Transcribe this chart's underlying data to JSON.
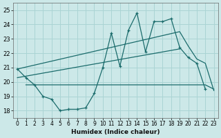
{
  "bg_color": "#cce8e8",
  "grid_color": "#aad4d4",
  "line_color": "#1a6b6b",
  "xlabel": "Humidex (Indice chaleur)",
  "ylim": [
    17.5,
    25.5
  ],
  "xlim": [
    -0.5,
    23.5
  ],
  "xticks": [
    0,
    1,
    2,
    3,
    4,
    5,
    6,
    7,
    8,
    9,
    10,
    11,
    12,
    13,
    14,
    15,
    16,
    17,
    18,
    19,
    20,
    21,
    22,
    23
  ],
  "yticks": [
    18,
    19,
    20,
    21,
    22,
    23,
    24,
    25
  ],
  "main": {
    "x": [
      0,
      1,
      2,
      3,
      4,
      5,
      6,
      7,
      8,
      9,
      10,
      11,
      12,
      13,
      14,
      15,
      16,
      17,
      18,
      19,
      20,
      21,
      22
    ],
    "y": [
      20.9,
      20.3,
      19.8,
      19.0,
      18.8,
      18.0,
      18.1,
      18.1,
      18.2,
      19.2,
      21.0,
      23.4,
      21.1,
      23.6,
      24.8,
      22.1,
      24.2,
      24.2,
      24.4,
      22.4,
      21.7,
      21.3,
      19.5
    ]
  },
  "upper": {
    "x": [
      0,
      19,
      20,
      21,
      22,
      23
    ],
    "y": [
      20.9,
      23.5,
      22.5,
      21.6,
      21.3,
      19.4
    ]
  },
  "middle": {
    "x": [
      0,
      19
    ],
    "y": [
      20.3,
      22.3
    ]
  },
  "lower": {
    "x": [
      0,
      22,
      23
    ],
    "y": [
      19.8,
      19.8,
      19.5
    ]
  }
}
